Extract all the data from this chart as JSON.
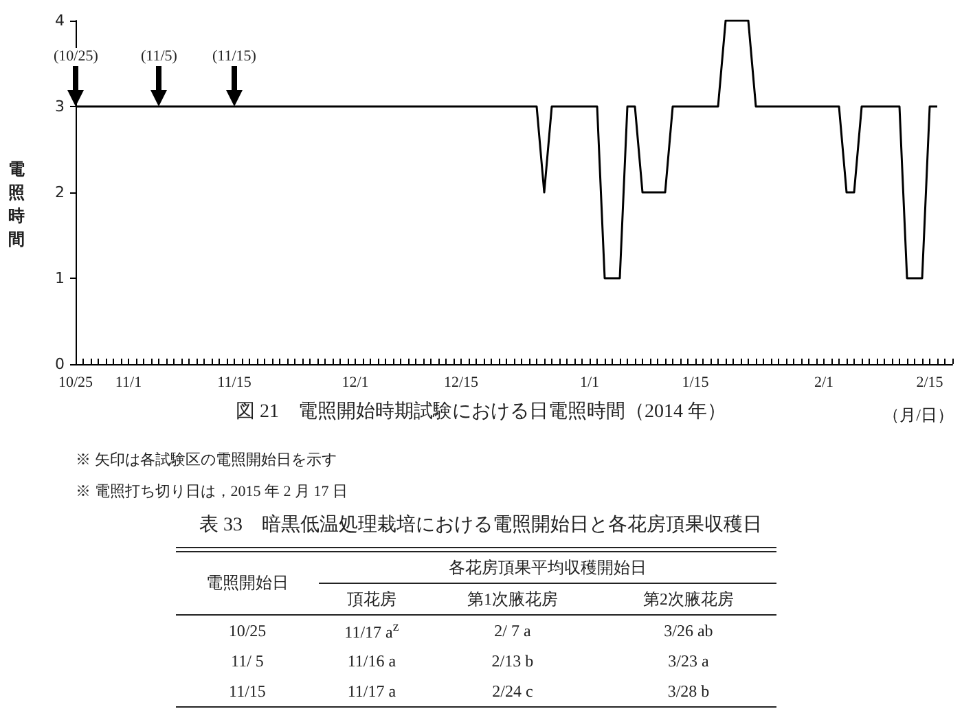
{
  "chart_data": {
    "type": "line",
    "title": "図 21　電照開始時期試験における日電照時間（2014 年）",
    "xlabel": "（月/日）",
    "ylabel": "電照時間",
    "x": [
      "2014-10-25",
      "2014-12-25",
      "2014-12-26",
      "2014-12-27",
      "2015-01-02",
      "2015-01-03",
      "2015-01-05",
      "2015-01-06",
      "2015-01-07",
      "2015-01-08",
      "2015-01-11",
      "2015-01-12",
      "2015-01-18",
      "2015-01-19",
      "2015-01-22",
      "2015-01-23",
      "2015-02-03",
      "2015-02-04",
      "2015-02-05",
      "2015-02-06",
      "2015-02-11",
      "2015-02-12",
      "2015-02-14",
      "2015-02-15",
      "2015-02-16"
    ],
    "series": [
      {
        "color": "#000000",
        "values": [
          3,
          3,
          2,
          3,
          3,
          1,
          1,
          3,
          3,
          2,
          2,
          3,
          3,
          4,
          4,
          3,
          3,
          2,
          2,
          3,
          3,
          1,
          1,
          3,
          3
        ]
      }
    ],
    "xlim": [
      "2014-10-25",
      "2015-02-18"
    ],
    "xticks": [
      {
        "value": "2014-10-25",
        "label": "10/25"
      },
      {
        "value": "2014-10-26",
        "label": null
      },
      {
        "value": "2014-10-27",
        "label": null
      },
      {
        "value": "2014-10-28",
        "label": null
      },
      {
        "value": "2014-10-29",
        "label": null
      },
      {
        "value": "2014-10-30",
        "label": null
      },
      {
        "value": "2014-10-31",
        "label": null
      },
      {
        "value": "2014-11-01",
        "label": "11/1"
      },
      {
        "value": "2014-11-02",
        "label": null
      },
      {
        "value": "2014-11-03",
        "label": null
      },
      {
        "value": "2014-11-04",
        "label": null
      },
      {
        "value": "2014-11-05",
        "label": null
      },
      {
        "value": "2014-11-06",
        "label": null
      },
      {
        "value": "2014-11-07",
        "label": null
      },
      {
        "value": "2014-11-08",
        "label": null
      },
      {
        "value": "2014-11-09",
        "label": null
      },
      {
        "value": "2014-11-10",
        "label": null
      },
      {
        "value": "2014-11-11",
        "label": null
      },
      {
        "value": "2014-11-12",
        "label": null
      },
      {
        "value": "2014-11-13",
        "label": null
      },
      {
        "value": "2014-11-14",
        "label": null
      },
      {
        "value": "2014-11-15",
        "label": "11/15"
      },
      {
        "value": "2014-11-16",
        "label": null
      },
      {
        "value": "2014-11-17",
        "label": null
      },
      {
        "value": "2014-11-18",
        "label": null
      },
      {
        "value": "2014-11-19",
        "label": null
      },
      {
        "value": "2014-11-20",
        "label": null
      },
      {
        "value": "2014-11-21",
        "label": null
      },
      {
        "value": "2014-11-22",
        "label": null
      },
      {
        "value": "2014-11-23",
        "label": null
      },
      {
        "value": "2014-11-24",
        "label": null
      },
      {
        "value": "2014-11-25",
        "label": null
      },
      {
        "value": "2014-11-26",
        "label": null
      },
      {
        "value": "2014-11-27",
        "label": null
      },
      {
        "value": "2014-11-28",
        "label": null
      },
      {
        "value": "2014-11-29",
        "label": null
      },
      {
        "value": "2014-11-30",
        "label": null
      },
      {
        "value": "2014-12-01",
        "label": "12/1"
      },
      {
        "value": "2014-12-02",
        "label": null
      },
      {
        "value": "2014-12-03",
        "label": null
      },
      {
        "value": "2014-12-04",
        "label": null
      },
      {
        "value": "2014-12-05",
        "label": null
      },
      {
        "value": "2014-12-06",
        "label": null
      },
      {
        "value": "2014-12-07",
        "label": null
      },
      {
        "value": "2014-12-08",
        "label": null
      },
      {
        "value": "2014-12-09",
        "label": null
      },
      {
        "value": "2014-12-10",
        "label": null
      },
      {
        "value": "2014-12-11",
        "label": null
      },
      {
        "value": "2014-12-12",
        "label": null
      },
      {
        "value": "2014-12-13",
        "label": null
      },
      {
        "value": "2014-12-14",
        "label": null
      },
      {
        "value": "2014-12-15",
        "label": "12/15"
      },
      {
        "value": "2014-12-16",
        "label": null
      },
      {
        "value": "2014-12-17",
        "label": null
      },
      {
        "value": "2014-12-18",
        "label": null
      },
      {
        "value": "2014-12-19",
        "label": null
      },
      {
        "value": "2014-12-20",
        "label": null
      },
      {
        "value": "2014-12-21",
        "label": null
      },
      {
        "value": "2014-12-22",
        "label": null
      },
      {
        "value": "2014-12-23",
        "label": null
      },
      {
        "value": "2014-12-24",
        "label": null
      },
      {
        "value": "2014-12-25",
        "label": null
      },
      {
        "value": "2014-12-26",
        "label": null
      },
      {
        "value": "2014-12-27",
        "label": null
      },
      {
        "value": "2014-12-28",
        "label": null
      },
      {
        "value": "2014-12-29",
        "label": null
      },
      {
        "value": "2014-12-30",
        "label": null
      },
      {
        "value": "2014-12-31",
        "label": null
      },
      {
        "value": "2015-01-01",
        "label": "1/1"
      },
      {
        "value": "2015-01-02",
        "label": null
      },
      {
        "value": "2015-01-03",
        "label": null
      },
      {
        "value": "2015-01-04",
        "label": null
      },
      {
        "value": "2015-01-05",
        "label": null
      },
      {
        "value": "2015-01-06",
        "label": null
      },
      {
        "value": "2015-01-07",
        "label": null
      },
      {
        "value": "2015-01-08",
        "label": null
      },
      {
        "value": "2015-01-09",
        "label": null
      },
      {
        "value": "2015-01-10",
        "label": null
      },
      {
        "value": "2015-01-11",
        "label": null
      },
      {
        "value": "2015-01-12",
        "label": null
      },
      {
        "value": "2015-01-13",
        "label": null
      },
      {
        "value": "2015-01-14",
        "label": null
      },
      {
        "value": "2015-01-15",
        "label": "1/15"
      },
      {
        "value": "2015-01-16",
        "label": null
      },
      {
        "value": "2015-01-17",
        "label": null
      },
      {
        "value": "2015-01-18",
        "label": null
      },
      {
        "value": "2015-01-19",
        "label": null
      },
      {
        "value": "2015-01-20",
        "label": null
      },
      {
        "value": "2015-01-21",
        "label": null
      },
      {
        "value": "2015-01-22",
        "label": null
      },
      {
        "value": "2015-01-23",
        "label": null
      },
      {
        "value": "2015-01-24",
        "label": null
      },
      {
        "value": "2015-01-25",
        "label": null
      },
      {
        "value": "2015-01-26",
        "label": null
      },
      {
        "value": "2015-01-27",
        "label": null
      },
      {
        "value": "2015-01-28",
        "label": null
      },
      {
        "value": "2015-01-29",
        "label": null
      },
      {
        "value": "2015-01-30",
        "label": null
      },
      {
        "value": "2015-01-31",
        "label": null
      },
      {
        "value": "2015-02-01",
        "label": "2/1"
      },
      {
        "value": "2015-02-02",
        "label": null
      },
      {
        "value": "2015-02-03",
        "label": null
      },
      {
        "value": "2015-02-04",
        "label": null
      },
      {
        "value": "2015-02-05",
        "label": null
      },
      {
        "value": "2015-02-06",
        "label": null
      },
      {
        "value": "2015-02-07",
        "label": null
      },
      {
        "value": "2015-02-08",
        "label": null
      },
      {
        "value": "2015-02-09",
        "label": null
      },
      {
        "value": "2015-02-10",
        "label": null
      },
      {
        "value": "2015-02-11",
        "label": null
      },
      {
        "value": "2015-02-12",
        "label": null
      },
      {
        "value": "2015-02-13",
        "label": null
      },
      {
        "value": "2015-02-14",
        "label": null
      },
      {
        "value": "2015-02-15",
        "label": "2/15"
      },
      {
        "value": "2015-02-16",
        "label": null
      },
      {
        "value": "2015-02-17",
        "label": null
      },
      {
        "value": "2015-02-18",
        "label": null
      }
    ],
    "ylim": [
      0,
      4
    ],
    "yticks": [
      0,
      1,
      2,
      3,
      4
    ],
    "grid": false,
    "annotations": [
      "※ 矢印は各試験区の電照開始日を示す",
      "※ 電照打ち切り日は，2015 年 2 月 17 日",
      "表 33　暗黒低温処理栽培における電照開始日と各花房頂果収穫日",
      "電照開始日",
      "各花房頂果平均収穫開始日",
      "頂花房",
      "第1次腋花房",
      "第2次腋花房",
      "10/25",
      "11/17 a$^{z}$",
      "2/ 7 a",
      "3/26 ab",
      "11/ 5",
      "11/16 a",
      "2/13 b",
      "3/23 a",
      "11/15",
      "11/17 a",
      "2/24 c",
      "3/28 b",
      {
        "text": "(10/25)",
        "x": "2014-10-25",
        "y": 3
      },
      {
        "text": "(11/5)",
        "x": "2014-11-05",
        "y": 3
      },
      {
        "text": "(11/15)",
        "x": "2014-11-15",
        "y": 3
      }
    ]
  }
}
